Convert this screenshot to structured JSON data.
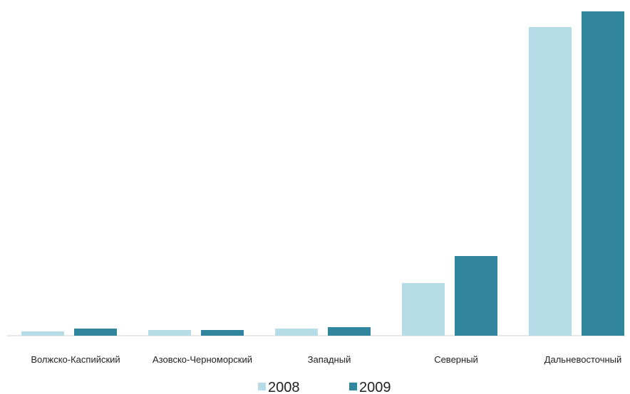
{
  "chart_data": {
    "type": "bar",
    "categories": [
      "Волжско-Каспийский",
      "Азовско-Черноморский",
      "Западный",
      "Северный",
      "Дальневосточный"
    ],
    "series": [
      {
        "name": "2008",
        "color": "#b6dde7",
        "values": [
          6,
          8,
          10,
          74,
          434
        ]
      },
      {
        "name": "2009",
        "color": "#31859c",
        "values": [
          10,
          8,
          12,
          112,
          456
        ]
      }
    ],
    "title": "",
    "xlabel": "",
    "ylabel": "",
    "ylim": [
      0,
      456
    ],
    "grid": false,
    "legend_position": "bottom"
  }
}
